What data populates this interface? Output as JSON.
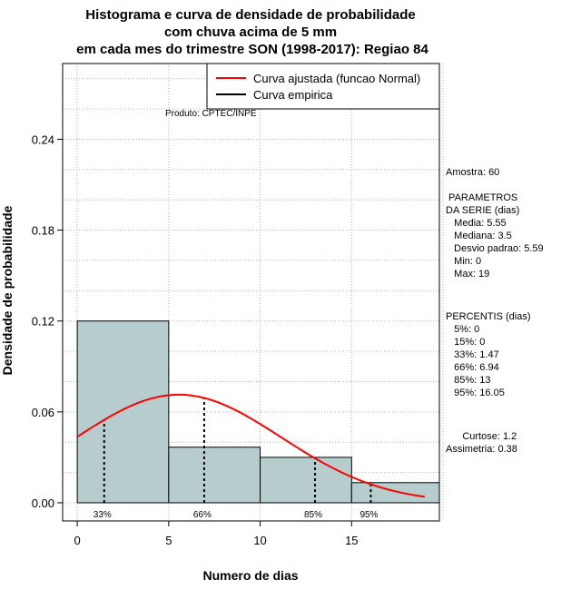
{
  "chart_data": {
    "type": "bar",
    "title_lines": [
      "Histograma e curva de densidade de probabilidade",
      "com chuva acima de 5 mm",
      "em cada mes do trimestre SON (1998-2017): Regiao 84"
    ],
    "xlabel": "Numero de dias",
    "ylabel": "Densidade de probabilidade",
    "xlim": [
      -0.8,
      19.8
    ],
    "ylim": [
      -0.012,
      0.29
    ],
    "xticks": [
      0,
      5,
      10,
      15
    ],
    "xtick_labels": [
      "0",
      "5",
      "10",
      "15"
    ],
    "yticks": [
      0.0,
      0.06,
      0.12,
      0.18,
      0.24
    ],
    "ytick_labels": [
      "0.00",
      "0.06",
      "0.12",
      "0.18",
      "0.24"
    ],
    "bins": [
      {
        "x0": 0,
        "x1": 5,
        "density": 0.12
      },
      {
        "x0": 5,
        "x1": 10,
        "density": 0.0367
      },
      {
        "x0": 10,
        "x1": 15,
        "density": 0.03
      },
      {
        "x0": 15,
        "x1": 20,
        "density": 0.0133
      }
    ],
    "normal_curve": {
      "mean": 5.55,
      "sd": 5.59,
      "x_from": 0,
      "x_to": 19
    },
    "percentile_markers": [
      {
        "label": "33%",
        "x": 1.47
      },
      {
        "label": "66%",
        "x": 6.94
      },
      {
        "label": "85%",
        "x": 13
      },
      {
        "label": "95%",
        "x": 16.05
      }
    ],
    "legend": {
      "position": "top-right",
      "entries": [
        {
          "label": "Curva ajustada (funcao Normal)",
          "color": "#ff0000"
        },
        {
          "label": "Curva empirica",
          "color": "#000000"
        }
      ]
    },
    "produto": "Produto: CPTEC/INPE",
    "colors": {
      "bar_fill": "#b7cccc",
      "curve": "#ff0000",
      "grid": "#b0b0b0"
    }
  },
  "stats_panel": {
    "amostra": "Amostra: 60",
    "param_title_1": " PARAMETROS",
    "param_title_2": "DA SERIE (dias)",
    "media": "   Media: 5.55",
    "mediana": "   Mediana: 3.5",
    "desvio": "   Desvio padrao: 5.59",
    "min": "   Min: 0",
    "max": "   Max: 19",
    "percentis_title": "PERCENTIS (dias)",
    "p5": "   5%: 0",
    "p15": "   15%: 0",
    "p33": "   33%: 1.47",
    "p66": "   66%: 6.94",
    "p85": "   85%: 13",
    "p95": "   95%: 16.05",
    "curtose": "      Curtose: 1.2",
    "assimetria": "Assimetria: 0.38"
  }
}
